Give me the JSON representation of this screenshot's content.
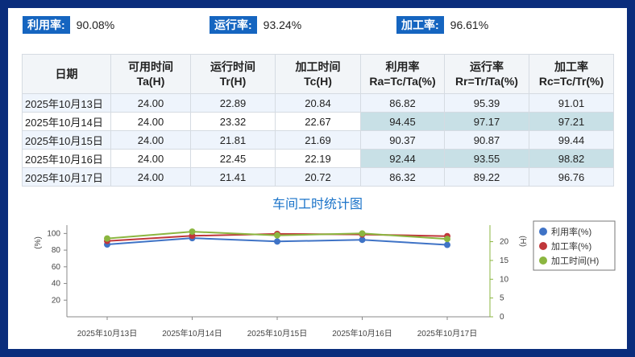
{
  "summary": [
    {
      "label": "利用率:",
      "value": "90.08%"
    },
    {
      "label": "运行率:",
      "value": "93.24%"
    },
    {
      "label": "加工率:",
      "value": "96.61%"
    }
  ],
  "table": {
    "headers": [
      {
        "line1": "日期",
        "line2": ""
      },
      {
        "line1": "可用时间",
        "line2": "Ta(H)"
      },
      {
        "line1": "运行时间",
        "line2": "Tr(H)"
      },
      {
        "line1": "加工时间",
        "line2": "Tc(H)"
      },
      {
        "line1": "利用率",
        "line2": "Ra=Tc/Ta(%)"
      },
      {
        "line1": "运行率",
        "line2": "Rr=Tr/Ta(%)"
      },
      {
        "line1": "加工率",
        "line2": "Rc=Tc/Tr(%)"
      }
    ],
    "rows": [
      [
        "2025年10月13日",
        "24.00",
        "22.89",
        "20.84",
        "86.82",
        "95.39",
        "91.01"
      ],
      [
        "2025年10月14日",
        "24.00",
        "23.32",
        "22.67",
        "94.45",
        "97.17",
        "97.21"
      ],
      [
        "2025年10月15日",
        "24.00",
        "21.81",
        "21.69",
        "90.37",
        "90.87",
        "99.44"
      ],
      [
        "2025年10月16日",
        "24.00",
        "22.45",
        "22.19",
        "92.44",
        "93.55",
        "98.82"
      ],
      [
        "2025年10月17日",
        "24.00",
        "21.41",
        "20.72",
        "86.32",
        "89.22",
        "96.76"
      ]
    ]
  },
  "chart_title": "车间工时统计图",
  "chart_data": {
    "type": "line",
    "categories": [
      "2025年10月13日",
      "2025年10月14日",
      "2025年10月15日",
      "2025年10月16日",
      "2025年10月17日"
    ],
    "y_left": {
      "label": "(%)",
      "ticks": [
        20,
        40,
        60,
        80,
        100
      ],
      "ylim": [
        0,
        110
      ]
    },
    "y_right": {
      "label": "(H)",
      "ticks": [
        0,
        5,
        10,
        15,
        20
      ],
      "ylim": [
        0,
        24.4
      ]
    },
    "series": [
      {
        "name": "利用率(%)",
        "axis": "left",
        "color": "#3f73c6",
        "values": [
          86.82,
          94.45,
          90.37,
          92.44,
          86.32
        ]
      },
      {
        "name": "加工率(%)",
        "axis": "left",
        "color": "#c0373b",
        "values": [
          91.01,
          97.21,
          99.44,
          98.82,
          96.76
        ]
      },
      {
        "name": "加工时间(H)",
        "axis": "right",
        "color": "#8bb640",
        "values": [
          20.84,
          22.67,
          21.69,
          22.19,
          20.72
        ]
      }
    ],
    "legend_position": "right",
    "grid": false
  }
}
